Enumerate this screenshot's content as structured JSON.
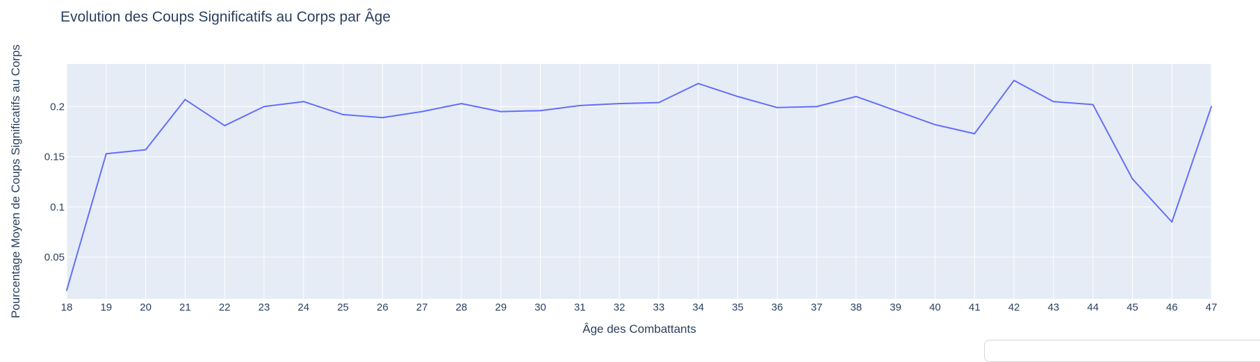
{
  "chart_data": {
    "type": "line",
    "title": "Evolution des Coups Significatifs au Corps par Âge",
    "xlabel": "Âge des Combattants",
    "ylabel": "Pourcentage Moyen de Coups Significatifs au Corps",
    "x": [
      18,
      19,
      20,
      21,
      22,
      23,
      24,
      25,
      26,
      27,
      28,
      29,
      30,
      31,
      32,
      33,
      34,
      35,
      36,
      37,
      38,
      39,
      40,
      41,
      42,
      43,
      44,
      45,
      46,
      47
    ],
    "series": [
      {
        "values": [
          0.017,
          0.153,
          0.157,
          0.207,
          0.181,
          0.2,
          0.205,
          0.192,
          0.189,
          0.195,
          0.203,
          0.195,
          0.196,
          0.201,
          0.203,
          0.204,
          0.223,
          0.21,
          0.199,
          0.2,
          0.21,
          0.196,
          0.182,
          0.173,
          0.226,
          0.205,
          0.202,
          0.128,
          0.085,
          0.2
        ],
        "color": "#636efa"
      }
    ],
    "xlim": [
      18,
      47
    ],
    "ylim": [
      0.0085,
      0.2425
    ],
    "yticks": [
      0.05,
      0.1,
      0.15,
      0.2
    ],
    "ytick_labels": [
      "0.05",
      "0.1",
      "0.15",
      "0.2"
    ],
    "xtick_labels": [
      "18",
      "19",
      "20",
      "21",
      "22",
      "23",
      "24",
      "25",
      "26",
      "27",
      "28",
      "29",
      "30",
      "31",
      "32",
      "33",
      "34",
      "35",
      "36",
      "37",
      "38",
      "39",
      "40",
      "41",
      "42",
      "43",
      "44",
      "45",
      "46",
      "47"
    ],
    "grid": true,
    "legend": "none",
    "plot_background": "#e5ecf6",
    "gridline_color": "#ffffff",
    "text_color": "#2a3f5f"
  }
}
